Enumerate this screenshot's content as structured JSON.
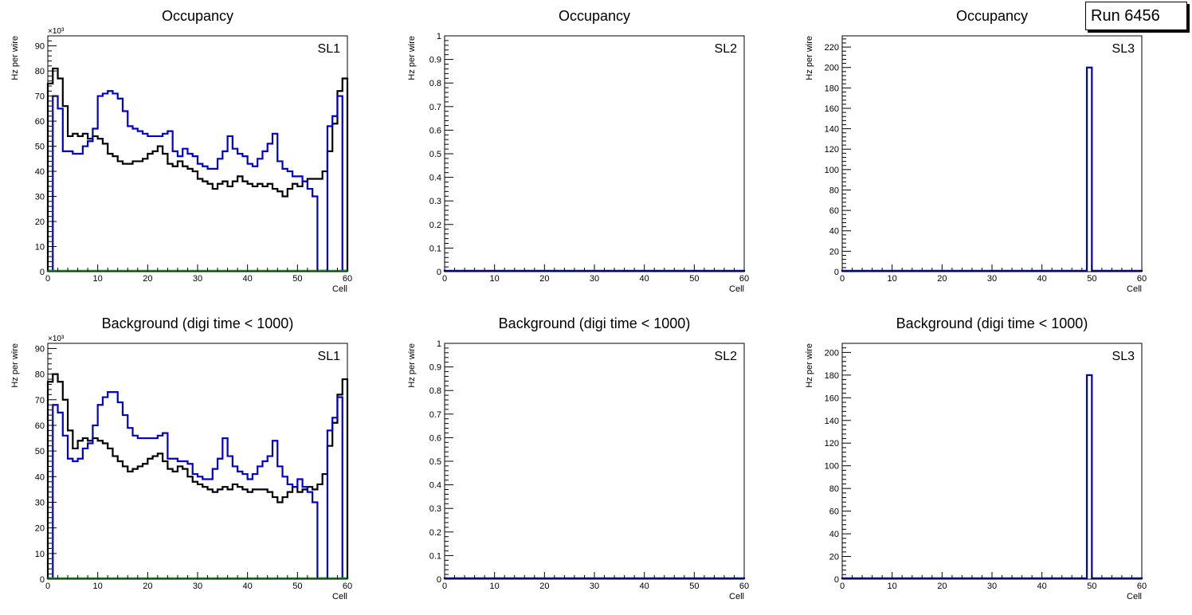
{
  "run_label": "Run 6456",
  "chart_data": [
    {
      "type": "histogram",
      "title": "Occupancy",
      "label": "SL1",
      "xlabel": "Cell",
      "ylabel": "Hz per wire",
      "exponent": "×10³",
      "xlim": [
        0,
        60
      ],
      "ylim": [
        0,
        94
      ],
      "xticks": [
        0,
        10,
        20,
        30,
        40,
        50,
        60
      ],
      "yticks": [
        0,
        10,
        20,
        30,
        40,
        50,
        60,
        70,
        80,
        90
      ],
      "bin_width": 1,
      "series": [
        {
          "color": "#000000",
          "values": [
            75,
            81,
            77,
            66,
            54,
            55,
            54,
            55,
            53,
            54,
            53,
            51,
            47,
            46,
            44,
            43,
            43,
            44,
            44,
            45,
            47,
            48,
            50,
            47,
            43,
            42,
            44,
            42,
            41,
            40,
            37,
            36,
            35,
            33,
            35,
            36,
            34,
            36,
            38,
            36,
            35,
            34,
            35,
            34,
            35,
            33,
            32,
            30,
            33,
            35,
            34,
            36,
            37,
            37,
            37,
            40,
            48,
            59,
            72,
            77
          ]
        },
        {
          "color": "#0000cc",
          "values": [
            0,
            70,
            65,
            48,
            48,
            47,
            47,
            50,
            52,
            57,
            70,
            71,
            72,
            71,
            69,
            64,
            58,
            57,
            56,
            55,
            54,
            54,
            54,
            55,
            56,
            48,
            46,
            49,
            47,
            46,
            43,
            42,
            41,
            41,
            45,
            48,
            54,
            49,
            47,
            46,
            43,
            42,
            45,
            48,
            51,
            55,
            44,
            41,
            40,
            38,
            38,
            36,
            33,
            30,
            0,
            0,
            58,
            62,
            70,
            0
          ]
        },
        {
          "color": "#00a000",
          "values": [
            0,
            0,
            0,
            0,
            0,
            0,
            0,
            0,
            0,
            0,
            0,
            0,
            0,
            0,
            0,
            0,
            0,
            0,
            0,
            0,
            0,
            0,
            0,
            0,
            0,
            0,
            0,
            0,
            0,
            0,
            0,
            0,
            0,
            0,
            0,
            0,
            0,
            0,
            0,
            0,
            0,
            0,
            0,
            0,
            0,
            0,
            0,
            0,
            0,
            0,
            0,
            0,
            0,
            0,
            0,
            0,
            0,
            0,
            0,
            0
          ]
        }
      ]
    },
    {
      "type": "histogram",
      "title": "Occupancy",
      "label": "SL2",
      "xlabel": "Cell",
      "ylabel": "Hz per wire",
      "exponent": "",
      "xlim": [
        0,
        60
      ],
      "ylim": [
        0,
        1
      ],
      "xticks": [
        0,
        10,
        20,
        30,
        40,
        50,
        60
      ],
      "yticks": [
        0,
        0.1,
        0.2,
        0.3,
        0.4,
        0.5,
        0.6,
        0.7,
        0.8,
        0.9,
        1
      ],
      "bin_width": 1,
      "series": [
        {
          "color": "#0000cc",
          "values": [
            0,
            0,
            0,
            0,
            0,
            0,
            0,
            0,
            0,
            0,
            0,
            0,
            0,
            0,
            0,
            0,
            0,
            0,
            0,
            0,
            0,
            0,
            0,
            0,
            0,
            0,
            0,
            0,
            0,
            0,
            0,
            0,
            0,
            0,
            0,
            0,
            0,
            0,
            0,
            0,
            0,
            0,
            0,
            0,
            0,
            0,
            0,
            0,
            0,
            0,
            0,
            0,
            0,
            0,
            0,
            0,
            0,
            0,
            0,
            0
          ]
        }
      ]
    },
    {
      "type": "histogram",
      "title": "Occupancy",
      "label": "SL3",
      "xlabel": "Cell",
      "ylabel": "Hz per wire",
      "exponent": "",
      "xlim": [
        0,
        60
      ],
      "ylim": [
        0,
        231
      ],
      "xticks": [
        0,
        10,
        20,
        30,
        40,
        50,
        60
      ],
      "yticks": [
        0,
        20,
        40,
        60,
        80,
        100,
        120,
        140,
        160,
        180,
        200,
        220
      ],
      "bin_width": 1,
      "series": [
        {
          "color": "#0000cc",
          "values": [
            0,
            0,
            0,
            0,
            0,
            0,
            0,
            0,
            0,
            0,
            0,
            0,
            0,
            0,
            0,
            0,
            0,
            0,
            0,
            0,
            0,
            0,
            0,
            0,
            0,
            0,
            0,
            0,
            0,
            0,
            0,
            0,
            0,
            0,
            0,
            0,
            0,
            0,
            0,
            0,
            0,
            0,
            0,
            0,
            0,
            0,
            0,
            0,
            0,
            200,
            0,
            0,
            0,
            0,
            0,
            0,
            0,
            0,
            0,
            0
          ]
        }
      ]
    },
    {
      "type": "histogram",
      "title": "Background (digi time < 1000)",
      "label": "SL1",
      "xlabel": "Cell",
      "ylabel": "Hz per wire",
      "exponent": "×10³",
      "xlim": [
        0,
        60
      ],
      "ylim": [
        0,
        92
      ],
      "xticks": [
        0,
        10,
        20,
        30,
        40,
        50,
        60
      ],
      "yticks": [
        0,
        10,
        20,
        30,
        40,
        50,
        60,
        70,
        80,
        90
      ],
      "bin_width": 1,
      "series": [
        {
          "color": "#000000",
          "values": [
            77,
            80,
            77,
            70,
            58,
            51,
            54,
            55,
            54,
            55,
            54,
            53,
            51,
            48,
            46,
            44,
            42,
            43,
            44,
            45,
            47,
            48,
            49,
            46,
            43,
            42,
            44,
            43,
            40,
            38,
            37,
            36,
            35,
            34,
            35,
            36,
            35,
            37,
            36,
            35,
            34,
            35,
            35,
            35,
            34,
            32,
            30,
            32,
            34,
            36,
            34,
            35,
            36,
            35,
            37,
            41,
            52,
            61,
            72,
            78
          ]
        },
        {
          "color": "#0000cc",
          "values": [
            0,
            68,
            65,
            56,
            47,
            46,
            47,
            51,
            53,
            60,
            68,
            71,
            73,
            73,
            69,
            64,
            59,
            56,
            55,
            55,
            55,
            55,
            56,
            57,
            47,
            47,
            46,
            46,
            45,
            41,
            40,
            39,
            39,
            43,
            47,
            55,
            48,
            44,
            42,
            41,
            39,
            41,
            44,
            46,
            48,
            54,
            44,
            40,
            37,
            36,
            39,
            36,
            34,
            30,
            0,
            0,
            58,
            63,
            71,
            0
          ]
        },
        {
          "color": "#00a000",
          "values": [
            0,
            0,
            0,
            0,
            0,
            0,
            0,
            0,
            0,
            0,
            0,
            0,
            0,
            0,
            0,
            0,
            0,
            0,
            0,
            0,
            0,
            0,
            0,
            0,
            0,
            0,
            0,
            0,
            0,
            0,
            0,
            0,
            0,
            0,
            0,
            0,
            0,
            0,
            0,
            0,
            0,
            0,
            0,
            0,
            0,
            0,
            0,
            0,
            0,
            0,
            0,
            0,
            0,
            0,
            0,
            0,
            0,
            0,
            0,
            0
          ]
        }
      ]
    },
    {
      "type": "histogram",
      "title": "Background (digi time < 1000)",
      "label": "SL2",
      "xlabel": "Cell",
      "ylabel": "Hz per wire",
      "exponent": "",
      "xlim": [
        0,
        60
      ],
      "ylim": [
        0,
        1
      ],
      "xticks": [
        0,
        10,
        20,
        30,
        40,
        50,
        60
      ],
      "yticks": [
        0,
        0.1,
        0.2,
        0.3,
        0.4,
        0.5,
        0.6,
        0.7,
        0.8,
        0.9,
        1
      ],
      "bin_width": 1,
      "series": [
        {
          "color": "#0000cc",
          "values": [
            0,
            0,
            0,
            0,
            0,
            0,
            0,
            0,
            0,
            0,
            0,
            0,
            0,
            0,
            0,
            0,
            0,
            0,
            0,
            0,
            0,
            0,
            0,
            0,
            0,
            0,
            0,
            0,
            0,
            0,
            0,
            0,
            0,
            0,
            0,
            0,
            0,
            0,
            0,
            0,
            0,
            0,
            0,
            0,
            0,
            0,
            0,
            0,
            0,
            0,
            0,
            0,
            0,
            0,
            0,
            0,
            0,
            0,
            0,
            0
          ]
        }
      ]
    },
    {
      "type": "histogram",
      "title": "Background (digi time < 1000)",
      "label": "SL3",
      "xlabel": "Cell",
      "ylabel": "Hz per wire",
      "exponent": "",
      "xlim": [
        0,
        60
      ],
      "ylim": [
        0,
        208
      ],
      "xticks": [
        0,
        10,
        20,
        30,
        40,
        50,
        60
      ],
      "yticks": [
        0,
        20,
        40,
        60,
        80,
        100,
        120,
        140,
        160,
        180,
        200
      ],
      "bin_width": 1,
      "series": [
        {
          "color": "#0000cc",
          "values": [
            0,
            0,
            0,
            0,
            0,
            0,
            0,
            0,
            0,
            0,
            0,
            0,
            0,
            0,
            0,
            0,
            0,
            0,
            0,
            0,
            0,
            0,
            0,
            0,
            0,
            0,
            0,
            0,
            0,
            0,
            0,
            0,
            0,
            0,
            0,
            0,
            0,
            0,
            0,
            0,
            0,
            0,
            0,
            0,
            0,
            0,
            0,
            0,
            0,
            180,
            0,
            0,
            0,
            0,
            0,
            0,
            0,
            0,
            0,
            0
          ]
        }
      ]
    }
  ]
}
